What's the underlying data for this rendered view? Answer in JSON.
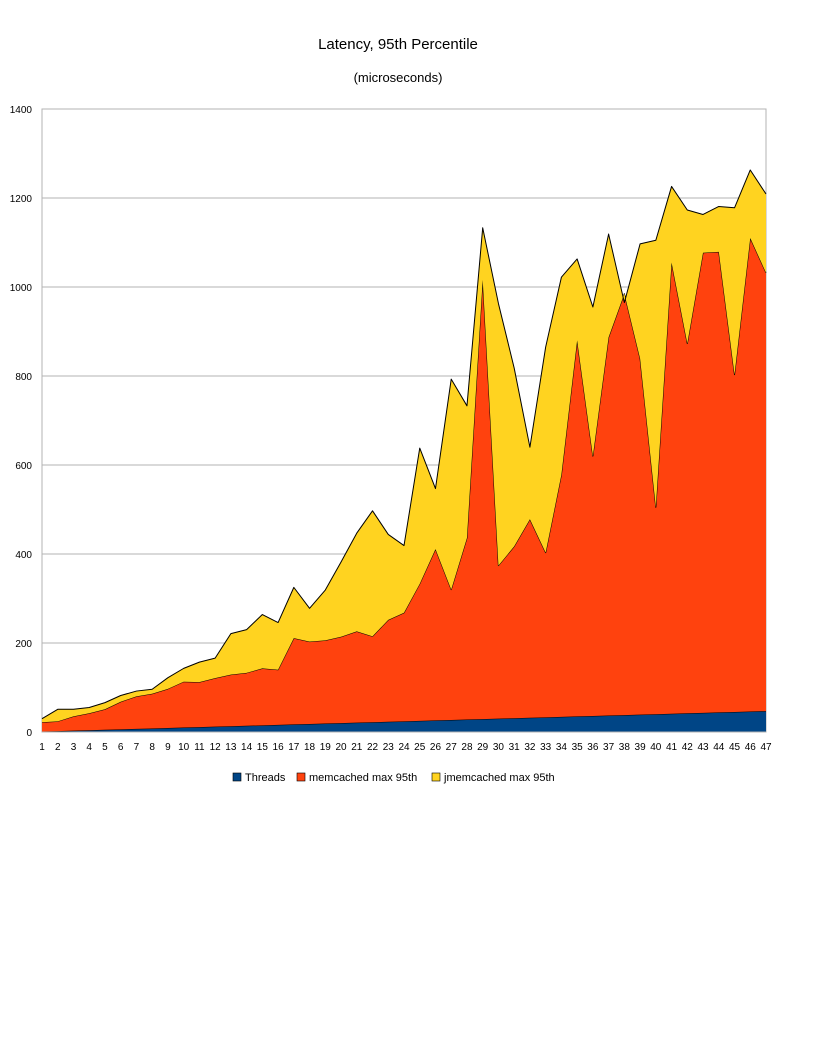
{
  "chart_data": {
    "type": "area",
    "stacked": true,
    "title": "Latency, 95th Percentile",
    "subtitle": "(microseconds)",
    "xlabel": "",
    "ylabel": "",
    "ylim": [
      0,
      1400
    ],
    "yticks": [
      0,
      200,
      400,
      600,
      800,
      1000,
      1200,
      1400
    ],
    "grid": true,
    "legend": "bottom",
    "categories": [
      "1",
      "2",
      "3",
      "4",
      "5",
      "6",
      "7",
      "8",
      "9",
      "10",
      "11",
      "12",
      "13",
      "14",
      "15",
      "16",
      "17",
      "18",
      "19",
      "20",
      "21",
      "22",
      "23",
      "24",
      "25",
      "26",
      "27",
      "28",
      "29",
      "30",
      "31",
      "32",
      "33",
      "34",
      "35",
      "36",
      "37",
      "38",
      "39",
      "40",
      "41",
      "42",
      "43",
      "44",
      "45",
      "46",
      "47"
    ],
    "series": [
      {
        "name": "Threads",
        "color": "#004586",
        "values": [
          1,
          2,
          3,
          4,
          5,
          6,
          7,
          8,
          9,
          10,
          11,
          12,
          13,
          14,
          15,
          16,
          17,
          18,
          19,
          20,
          21,
          22,
          23,
          24,
          25,
          26,
          27,
          28,
          29,
          30,
          31,
          32,
          33,
          34,
          35,
          36,
          37,
          38,
          39,
          40,
          41,
          42,
          43,
          44,
          45,
          46,
          47
        ]
      },
      {
        "name": "memcached max 95th",
        "color": "#ff420e",
        "values": [
          21,
          22,
          32,
          38,
          46,
          62,
          73,
          78,
          88,
          103,
          101,
          109,
          116,
          119,
          128,
          124,
          194,
          185,
          187,
          194,
          205,
          193,
          229,
          244,
          308,
          385,
          293,
          408,
          987,
          344,
          386,
          446,
          370,
          544,
          845,
          584,
          850,
          947,
          800,
          465,
          1014,
          831,
          1034,
          1035,
          758,
          1064,
          985
        ]
      },
      {
        "name": "jmemcached max 95th",
        "color": "#ffd320",
        "values": [
          8,
          27,
          16,
          13,
          15,
          14,
          12,
          10,
          25,
          30,
          45,
          45,
          92,
          97,
          121,
          106,
          114,
          75,
          113,
          168,
          221,
          282,
          192,
          151,
          305,
          136,
          473,
          297,
          117,
          589,
          401,
          162,
          462,
          444,
          183,
          335,
          232,
          -20,
          258,
          600,
          171,
          300,
          86,
          102,
          375,
          153,
          177
        ]
      }
    ]
  }
}
